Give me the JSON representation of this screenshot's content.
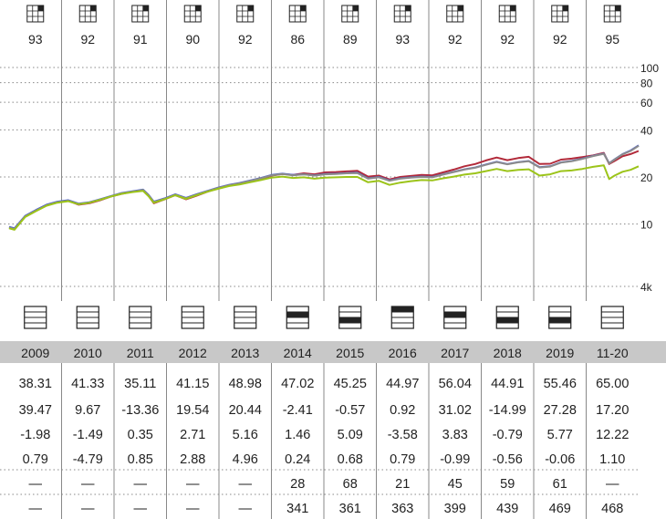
{
  "style_boxes": [
    {
      "year_value": "93",
      "filled_cell": "large-growth"
    },
    {
      "year_value": "92",
      "filled_cell": "large-growth"
    },
    {
      "year_value": "91",
      "filled_cell": "large-growth"
    },
    {
      "year_value": "90",
      "filled_cell": "large-growth"
    },
    {
      "year_value": "92",
      "filled_cell": "large-growth"
    },
    {
      "year_value": "86",
      "filled_cell": "large-growth"
    },
    {
      "year_value": "89",
      "filled_cell": "large-growth"
    },
    {
      "year_value": "93",
      "filled_cell": "large-growth"
    },
    {
      "year_value": "92",
      "filled_cell": "large-growth"
    },
    {
      "year_value": "92",
      "filled_cell": "large-growth"
    },
    {
      "year_value": "92",
      "filled_cell": "large-growth"
    },
    {
      "year_value": "95",
      "filled_cell": "large-growth"
    }
  ],
  "quartile_icons": [
    null,
    null,
    null,
    null,
    null,
    2,
    3,
    1,
    2,
    3,
    3,
    null
  ],
  "years": [
    "2009",
    "2010",
    "2011",
    "2012",
    "2013",
    "2014",
    "2015",
    "2016",
    "2017",
    "2018",
    "2019",
    "11-20"
  ],
  "table_rows": [
    [
      "38.31",
      "41.33",
      "35.11",
      "41.15",
      "48.98",
      "47.02",
      "45.25",
      "44.97",
      "56.04",
      "44.91",
      "55.46",
      "65.00"
    ],
    [
      "39.47",
      "9.67",
      "-13.36",
      "19.54",
      "20.44",
      "-2.41",
      "-0.57",
      "0.92",
      "31.02",
      "-14.99",
      "27.28",
      "17.20"
    ],
    [
      "-1.98",
      "-1.49",
      "0.35",
      "2.71",
      "5.16",
      "1.46",
      "5.09",
      "-3.58",
      "3.83",
      "-0.79",
      "5.77",
      "12.22"
    ],
    [
      "0.79",
      "-4.79",
      "0.85",
      "2.88",
      "4.96",
      "0.24",
      "0.68",
      "0.79",
      "-0.99",
      "-0.56",
      "-0.06",
      "1.10"
    ],
    [
      "—",
      "—",
      "—",
      "—",
      "—",
      "28",
      "68",
      "21",
      "45",
      "59",
      "61",
      "—"
    ],
    [
      "—",
      "—",
      "—",
      "—",
      "—",
      "341",
      "361",
      "363",
      "399",
      "439",
      "469",
      "468"
    ]
  ],
  "colors": {
    "grid": "#888888",
    "band": "#c8c8c8",
    "series_1": "#b22a3a",
    "series_2": "#4a5ed0",
    "series_3": "#8b8b8b",
    "series_4": "#9cc41a",
    "icon_fill": "#222222"
  },
  "chart_data": {
    "type": "line",
    "scale": "log",
    "y_tick_labels": [
      "100",
      "80",
      "60",
      "40",
      "20",
      "10",
      "4k"
    ],
    "y_tick_values": [
      100,
      80,
      60,
      40,
      20,
      10,
      4
    ],
    "ylim": [
      4,
      100
    ],
    "x_start": 2009,
    "x_end": 2020.75,
    "grid": true,
    "series": [
      {
        "color": "#b22a3a",
        "points": [
          [
            2009.0,
            9.5
          ],
          [
            2009.1,
            9.3
          ],
          [
            2009.2,
            10.2
          ],
          [
            2009.3,
            11.2
          ],
          [
            2009.5,
            12.2
          ],
          [
            2009.7,
            13.2
          ],
          [
            2009.9,
            13.8
          ],
          [
            2010.1,
            14.1
          ],
          [
            2010.3,
            13.3
          ],
          [
            2010.5,
            13.6
          ],
          [
            2010.7,
            14.2
          ],
          [
            2010.9,
            15.0
          ],
          [
            2011.1,
            15.6
          ],
          [
            2011.3,
            16.1
          ],
          [
            2011.5,
            16.4
          ],
          [
            2011.6,
            15.2
          ],
          [
            2011.7,
            13.6
          ],
          [
            2011.9,
            14.4
          ],
          [
            2012.1,
            15.3
          ],
          [
            2012.3,
            14.4
          ],
          [
            2012.5,
            15.2
          ],
          [
            2012.7,
            16.1
          ],
          [
            2012.9,
            16.9
          ],
          [
            2013.1,
            17.6
          ],
          [
            2013.3,
            18.0
          ],
          [
            2013.5,
            18.7
          ],
          [
            2013.7,
            19.4
          ],
          [
            2013.9,
            20.4
          ],
          [
            2014.1,
            20.9
          ],
          [
            2014.3,
            20.6
          ],
          [
            2014.5,
            21.1
          ],
          [
            2014.7,
            20.8
          ],
          [
            2014.9,
            21.4
          ],
          [
            2015.1,
            21.5
          ],
          [
            2015.3,
            21.7
          ],
          [
            2015.5,
            21.9
          ],
          [
            2015.7,
            20.1
          ],
          [
            2015.9,
            20.4
          ],
          [
            2016.1,
            19.3
          ],
          [
            2016.3,
            20.0
          ],
          [
            2016.5,
            20.3
          ],
          [
            2016.7,
            20.6
          ],
          [
            2016.9,
            20.5
          ],
          [
            2017.1,
            21.4
          ],
          [
            2017.3,
            22.3
          ],
          [
            2017.5,
            23.4
          ],
          [
            2017.7,
            24.2
          ],
          [
            2017.9,
            25.5
          ],
          [
            2018.1,
            26.6
          ],
          [
            2018.3,
            25.6
          ],
          [
            2018.5,
            26.4
          ],
          [
            2018.7,
            26.9
          ],
          [
            2018.9,
            24.2
          ],
          [
            2019.1,
            24.3
          ],
          [
            2019.3,
            25.8
          ],
          [
            2019.5,
            26.2
          ],
          [
            2019.7,
            26.8
          ],
          [
            2019.9,
            27.5
          ],
          [
            2020.1,
            28.5
          ],
          [
            2020.2,
            24.2
          ],
          [
            2020.3,
            25.3
          ],
          [
            2020.45,
            27.1
          ],
          [
            2020.6,
            28.0
          ],
          [
            2020.75,
            29.3
          ]
        ]
      },
      {
        "color": "#4a5ed0",
        "points": [
          [
            2009.0,
            9.6
          ],
          [
            2009.1,
            9.4
          ],
          [
            2009.2,
            10.3
          ],
          [
            2009.3,
            11.3
          ],
          [
            2009.5,
            12.3
          ],
          [
            2009.7,
            13.3
          ],
          [
            2009.9,
            13.9
          ],
          [
            2010.1,
            14.2
          ],
          [
            2010.3,
            13.5
          ],
          [
            2010.5,
            13.8
          ],
          [
            2010.7,
            14.4
          ],
          [
            2010.9,
            15.1
          ],
          [
            2011.1,
            15.8
          ],
          [
            2011.3,
            16.2
          ],
          [
            2011.5,
            16.6
          ],
          [
            2011.6,
            15.4
          ],
          [
            2011.7,
            13.9
          ],
          [
            2011.9,
            14.6
          ],
          [
            2012.1,
            15.5
          ],
          [
            2012.3,
            14.7
          ],
          [
            2012.5,
            15.5
          ],
          [
            2012.7,
            16.3
          ],
          [
            2012.9,
            17.1
          ],
          [
            2013.1,
            17.8
          ],
          [
            2013.3,
            18.3
          ],
          [
            2013.5,
            19.0
          ],
          [
            2013.7,
            19.7
          ],
          [
            2013.9,
            20.6
          ],
          [
            2014.1,
            21.0
          ],
          [
            2014.3,
            20.6
          ],
          [
            2014.5,
            20.8
          ],
          [
            2014.7,
            20.5
          ],
          [
            2014.9,
            20.9
          ],
          [
            2015.1,
            21.0
          ],
          [
            2015.3,
            21.2
          ],
          [
            2015.5,
            21.3
          ],
          [
            2015.7,
            19.6
          ],
          [
            2015.9,
            20.0
          ],
          [
            2016.1,
            19.0
          ],
          [
            2016.3,
            19.6
          ],
          [
            2016.5,
            19.9
          ],
          [
            2016.7,
            20.1
          ],
          [
            2016.9,
            20.0
          ],
          [
            2017.1,
            20.8
          ],
          [
            2017.3,
            21.6
          ],
          [
            2017.5,
            22.4
          ],
          [
            2017.7,
            23.0
          ],
          [
            2017.9,
            24.0
          ],
          [
            2018.1,
            25.0
          ],
          [
            2018.3,
            24.2
          ],
          [
            2018.5,
            24.9
          ],
          [
            2018.7,
            25.3
          ],
          [
            2018.9,
            23.1
          ],
          [
            2019.1,
            23.4
          ],
          [
            2019.3,
            24.8
          ],
          [
            2019.5,
            25.3
          ],
          [
            2019.7,
            26.2
          ],
          [
            2019.9,
            27.3
          ],
          [
            2020.1,
            28.2
          ],
          [
            2020.2,
            24.5
          ],
          [
            2020.3,
            25.9
          ],
          [
            2020.45,
            28.0
          ],
          [
            2020.6,
            29.5
          ],
          [
            2020.75,
            31.8
          ]
        ]
      },
      {
        "color": "#8b8b8b",
        "points": [
          [
            2009.0,
            9.5
          ],
          [
            2009.1,
            9.3
          ],
          [
            2009.2,
            10.2
          ],
          [
            2009.3,
            11.2
          ],
          [
            2009.5,
            12.2
          ],
          [
            2009.7,
            13.2
          ],
          [
            2009.9,
            13.8
          ],
          [
            2010.1,
            14.1
          ],
          [
            2010.3,
            13.4
          ],
          [
            2010.5,
            13.7
          ],
          [
            2010.7,
            14.3
          ],
          [
            2010.9,
            15.0
          ],
          [
            2011.1,
            15.7
          ],
          [
            2011.3,
            16.1
          ],
          [
            2011.5,
            16.5
          ],
          [
            2011.6,
            15.3
          ],
          [
            2011.7,
            13.8
          ],
          [
            2011.9,
            14.5
          ],
          [
            2012.1,
            15.4
          ],
          [
            2012.3,
            14.6
          ],
          [
            2012.5,
            15.4
          ],
          [
            2012.7,
            16.2
          ],
          [
            2012.9,
            17.0
          ],
          [
            2013.1,
            17.7
          ],
          [
            2013.3,
            18.2
          ],
          [
            2013.5,
            18.9
          ],
          [
            2013.7,
            19.6
          ],
          [
            2013.9,
            20.5
          ],
          [
            2014.1,
            20.9
          ],
          [
            2014.3,
            20.5
          ],
          [
            2014.5,
            20.8
          ],
          [
            2014.7,
            20.4
          ],
          [
            2014.9,
            20.8
          ],
          [
            2015.1,
            20.9
          ],
          [
            2015.3,
            21.1
          ],
          [
            2015.5,
            21.2
          ],
          [
            2015.7,
            19.5
          ],
          [
            2015.9,
            19.9
          ],
          [
            2016.1,
            18.9
          ],
          [
            2016.3,
            19.5
          ],
          [
            2016.5,
            19.8
          ],
          [
            2016.7,
            20.0
          ],
          [
            2016.9,
            19.9
          ],
          [
            2017.1,
            20.7
          ],
          [
            2017.3,
            21.5
          ],
          [
            2017.5,
            22.3
          ],
          [
            2017.7,
            22.9
          ],
          [
            2017.9,
            23.9
          ],
          [
            2018.1,
            24.9
          ],
          [
            2018.3,
            24.1
          ],
          [
            2018.5,
            24.8
          ],
          [
            2018.7,
            25.2
          ],
          [
            2018.9,
            23.0
          ],
          [
            2019.1,
            23.3
          ],
          [
            2019.3,
            24.7
          ],
          [
            2019.5,
            25.2
          ],
          [
            2019.7,
            26.1
          ],
          [
            2019.9,
            27.2
          ],
          [
            2020.1,
            28.1
          ],
          [
            2020.2,
            24.4
          ],
          [
            2020.3,
            25.8
          ],
          [
            2020.45,
            27.9
          ],
          [
            2020.6,
            29.3
          ],
          [
            2020.75,
            31.6
          ]
        ]
      },
      {
        "color": "#9cc41a",
        "points": [
          [
            2009.0,
            9.4
          ],
          [
            2009.1,
            9.2
          ],
          [
            2009.2,
            10.1
          ],
          [
            2009.3,
            11.1
          ],
          [
            2009.5,
            12.1
          ],
          [
            2009.7,
            13.1
          ],
          [
            2009.9,
            13.7
          ],
          [
            2010.1,
            14.0
          ],
          [
            2010.3,
            13.4
          ],
          [
            2010.5,
            13.7
          ],
          [
            2010.7,
            14.3
          ],
          [
            2010.9,
            15.0
          ],
          [
            2011.1,
            15.6
          ],
          [
            2011.3,
            16.0
          ],
          [
            2011.5,
            16.3
          ],
          [
            2011.6,
            15.1
          ],
          [
            2011.7,
            13.7
          ],
          [
            2011.9,
            14.4
          ],
          [
            2012.1,
            15.3
          ],
          [
            2012.3,
            14.5
          ],
          [
            2012.5,
            15.3
          ],
          [
            2012.7,
            16.1
          ],
          [
            2012.9,
            16.8
          ],
          [
            2013.1,
            17.5
          ],
          [
            2013.3,
            17.9
          ],
          [
            2013.5,
            18.5
          ],
          [
            2013.7,
            19.1
          ],
          [
            2013.9,
            19.8
          ],
          [
            2014.1,
            20.1
          ],
          [
            2014.3,
            19.7
          ],
          [
            2014.5,
            19.9
          ],
          [
            2014.7,
            19.5
          ],
          [
            2014.9,
            19.8
          ],
          [
            2015.1,
            19.9
          ],
          [
            2015.3,
            20.0
          ],
          [
            2015.5,
            20.0
          ],
          [
            2015.7,
            18.5
          ],
          [
            2015.9,
            18.9
          ],
          [
            2016.1,
            17.8
          ],
          [
            2016.3,
            18.4
          ],
          [
            2016.5,
            18.8
          ],
          [
            2016.7,
            19.1
          ],
          [
            2016.9,
            19.0
          ],
          [
            2017.1,
            19.6
          ],
          [
            2017.3,
            20.1
          ],
          [
            2017.5,
            20.7
          ],
          [
            2017.7,
            21.1
          ],
          [
            2017.9,
            21.8
          ],
          [
            2018.1,
            22.5
          ],
          [
            2018.3,
            21.8
          ],
          [
            2018.5,
            22.2
          ],
          [
            2018.7,
            22.4
          ],
          [
            2018.9,
            20.4
          ],
          [
            2019.1,
            20.8
          ],
          [
            2019.3,
            21.8
          ],
          [
            2019.5,
            22.0
          ],
          [
            2019.7,
            22.5
          ],
          [
            2019.9,
            23.2
          ],
          [
            2020.1,
            23.7
          ],
          [
            2020.2,
            19.4
          ],
          [
            2020.3,
            20.4
          ],
          [
            2020.45,
            21.6
          ],
          [
            2020.6,
            22.2
          ],
          [
            2020.75,
            23.4
          ]
        ]
      }
    ]
  }
}
